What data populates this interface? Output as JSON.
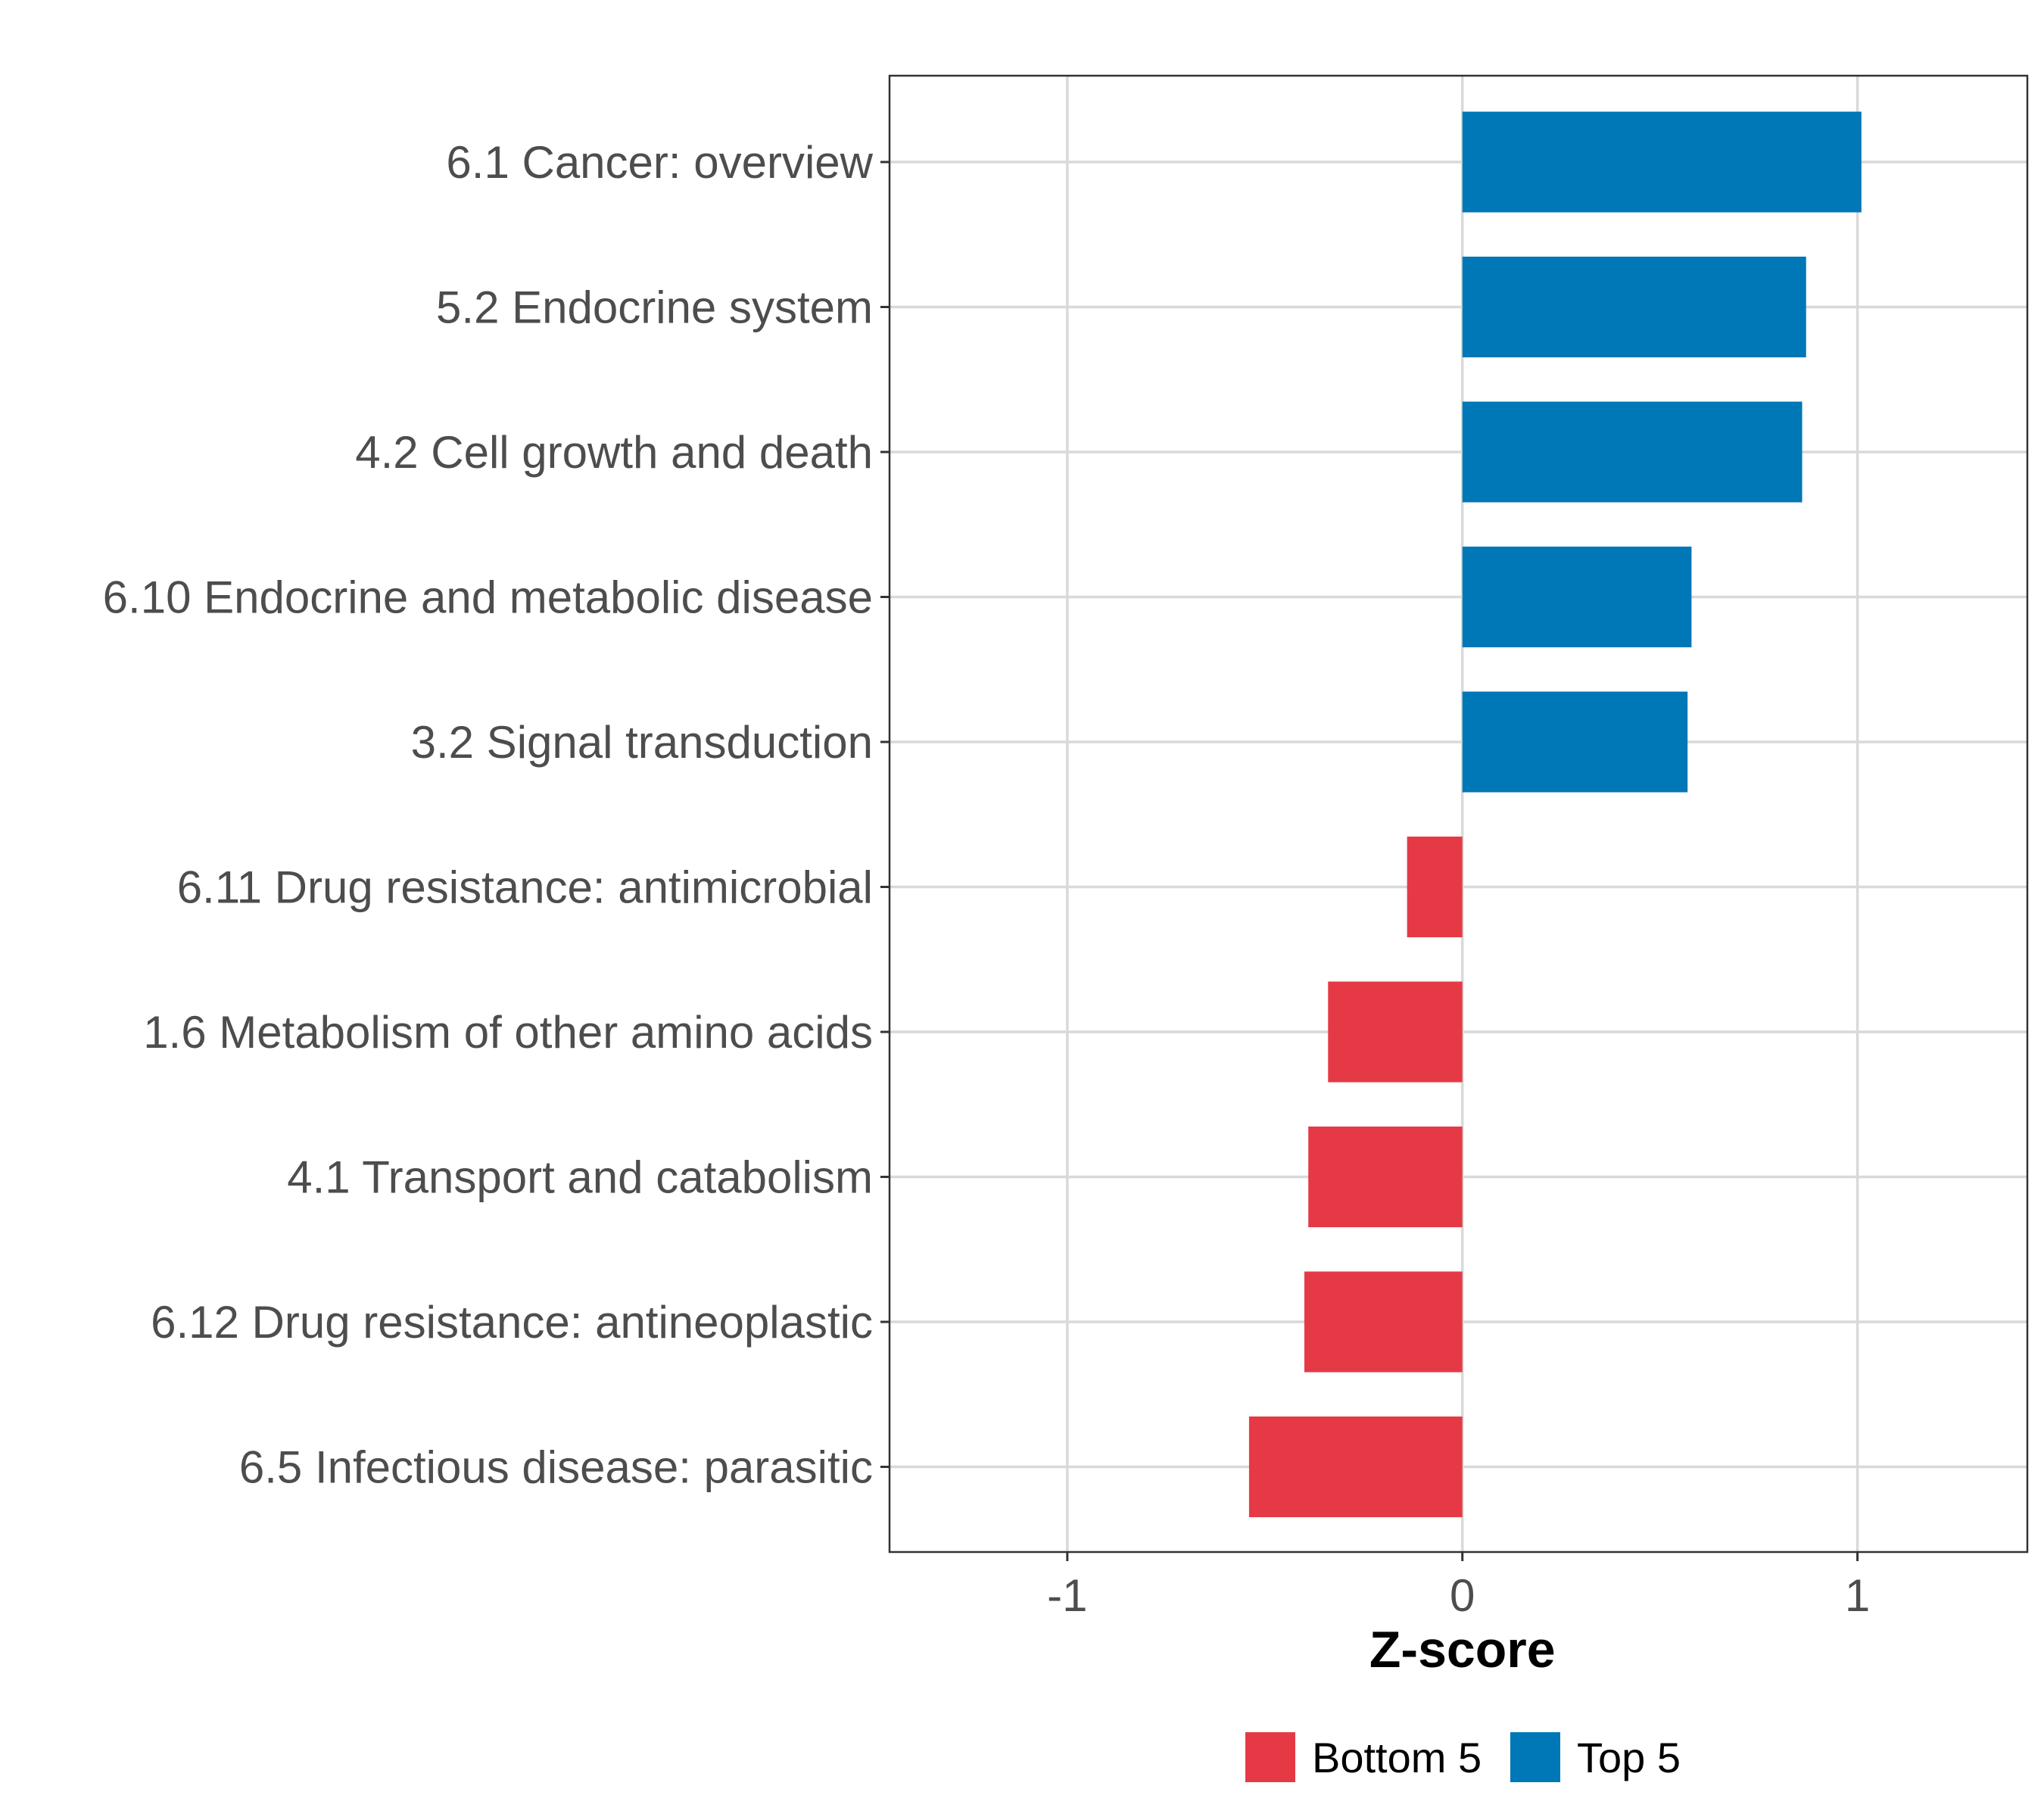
{
  "chart_data": {
    "type": "bar",
    "orientation": "horizontal",
    "title": "",
    "xlabel": "Z-score",
    "ylabel": "",
    "xlim": [
      -1.45,
      1.43
    ],
    "x_ticks": [
      -1,
      0,
      1
    ],
    "x_tick_labels": [
      "-1",
      "0",
      "1"
    ],
    "grid": true,
    "legend_position": "bottom",
    "categories": [
      "6.1 Cancer: overview",
      "5.2 Endocrine system",
      "4.2 Cell growth and death",
      "6.10 Endocrine and metabolic disease",
      "3.2 Signal transduction",
      "6.11 Drug resistance: antimicrobial",
      "1.6 Metabolism of other amino acids",
      "4.1 Transport and catabolism",
      "6.12 Drug resistance: antineoplastic",
      "6.5 Infectious disease: parasitic"
    ],
    "values": [
      1.01,
      0.87,
      0.86,
      0.58,
      0.57,
      -0.14,
      -0.34,
      -0.39,
      -0.4,
      -0.54
    ],
    "groups": [
      "Top 5",
      "Top 5",
      "Top 5",
      "Top 5",
      "Top 5",
      "Bottom 5",
      "Bottom 5",
      "Bottom 5",
      "Bottom 5",
      "Bottom 5"
    ],
    "legend": [
      {
        "name": "Bottom 5",
        "color": "#e63946"
      },
      {
        "name": "Top 5",
        "color": "#0077b6"
      }
    ],
    "colors": {
      "Top 5": "#0077b6",
      "Bottom 5": "#e63946",
      "grid": "#d9d9d9",
      "frame": "#333333"
    }
  }
}
